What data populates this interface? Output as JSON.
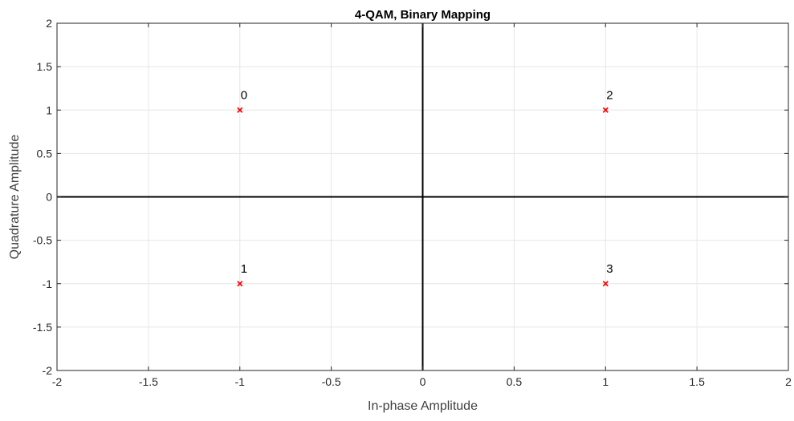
{
  "chart_data": {
    "type": "scatter",
    "title": "4-QAM, Binary Mapping",
    "xlabel": "In-phase Amplitude",
    "ylabel": "Quadrature Amplitude",
    "xlim": [
      -2,
      2
    ],
    "ylim": [
      -2,
      2
    ],
    "xticks": [
      -2,
      -1.5,
      -1,
      -0.5,
      0,
      0.5,
      1,
      1.5,
      2
    ],
    "yticks": [
      -2,
      -1.5,
      -1,
      -0.5,
      0,
      0.5,
      1,
      1.5,
      2
    ],
    "grid": true,
    "marker": "x",
    "series": [
      {
        "color": "#ff0000",
        "points": [
          {
            "x": -1,
            "y": 1,
            "label": "0"
          },
          {
            "x": -1,
            "y": -1,
            "label": "1"
          },
          {
            "x": 1,
            "y": 1,
            "label": "2"
          },
          {
            "x": 1,
            "y": -1,
            "label": "3"
          }
        ]
      }
    ]
  }
}
